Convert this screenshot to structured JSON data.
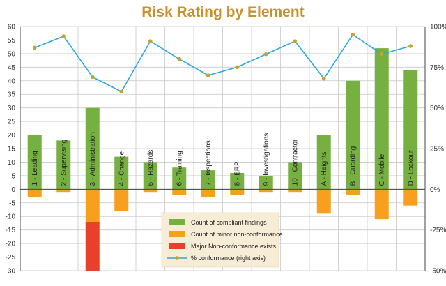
{
  "chart_data": {
    "type": "bar",
    "title": "Risk Rating by Element",
    "categories": [
      "1 - Leading",
      "2 - Supervising",
      "3 - Administration",
      "4 - Change",
      "5 - Hazards",
      "6 - Training",
      "7 - Inspections",
      "8 - ERP",
      "9 - Investigations",
      "10 - Contractor",
      "A - Heights",
      "B - Guarding",
      "C - Mobile",
      "D - Lockout"
    ],
    "ylim": [
      -30,
      60
    ],
    "y_ticks": [
      "60",
      "55",
      "50",
      "45",
      "40",
      "35",
      "30",
      "25",
      "20",
      "15",
      "10",
      "5",
      "0",
      "-5",
      "-10",
      "-15",
      "-20",
      "-25",
      "-30"
    ],
    "y2lim": [
      -50,
      100
    ],
    "y2_ticks": [
      "100%",
      "75%",
      "50%",
      "25%",
      "0%",
      "-25%",
      "-50%"
    ],
    "grid": true,
    "legend_position": "bottom-center",
    "series": [
      {
        "name": "Count of compliant findings",
        "type": "bar",
        "color": "#76b041",
        "values": [
          20,
          18,
          30,
          12,
          10,
          8,
          7,
          6,
          5,
          10,
          20,
          40,
          52,
          44
        ]
      },
      {
        "name": "Count of minor non-conformance",
        "type": "bar",
        "color": "#f7a01e",
        "values": [
          -3,
          -1,
          -12,
          -8,
          -1,
          -2,
          -3,
          -2,
          -1,
          -1,
          -9,
          -2,
          -11,
          -6
        ]
      },
      {
        "name": "Major Non-conformance exists",
        "type": "bar",
        "color": "#e8402a",
        "values": [
          0,
          0,
          -18,
          0,
          0,
          0,
          0,
          0,
          0,
          0,
          0,
          0,
          0,
          0
        ]
      },
      {
        "name": "% conformance (right axis)",
        "type": "line",
        "axis": "right",
        "color": "#29a8e0",
        "marker_color": "#c9a227",
        "values": [
          87,
          94,
          69,
          60,
          91,
          80,
          70,
          75,
          83,
          91,
          68,
          95,
          83,
          88
        ]
      }
    ]
  },
  "colors": {
    "title": "#c9902b",
    "grid": "#c8c8c8",
    "legend_bg": "#f7ecd6"
  }
}
